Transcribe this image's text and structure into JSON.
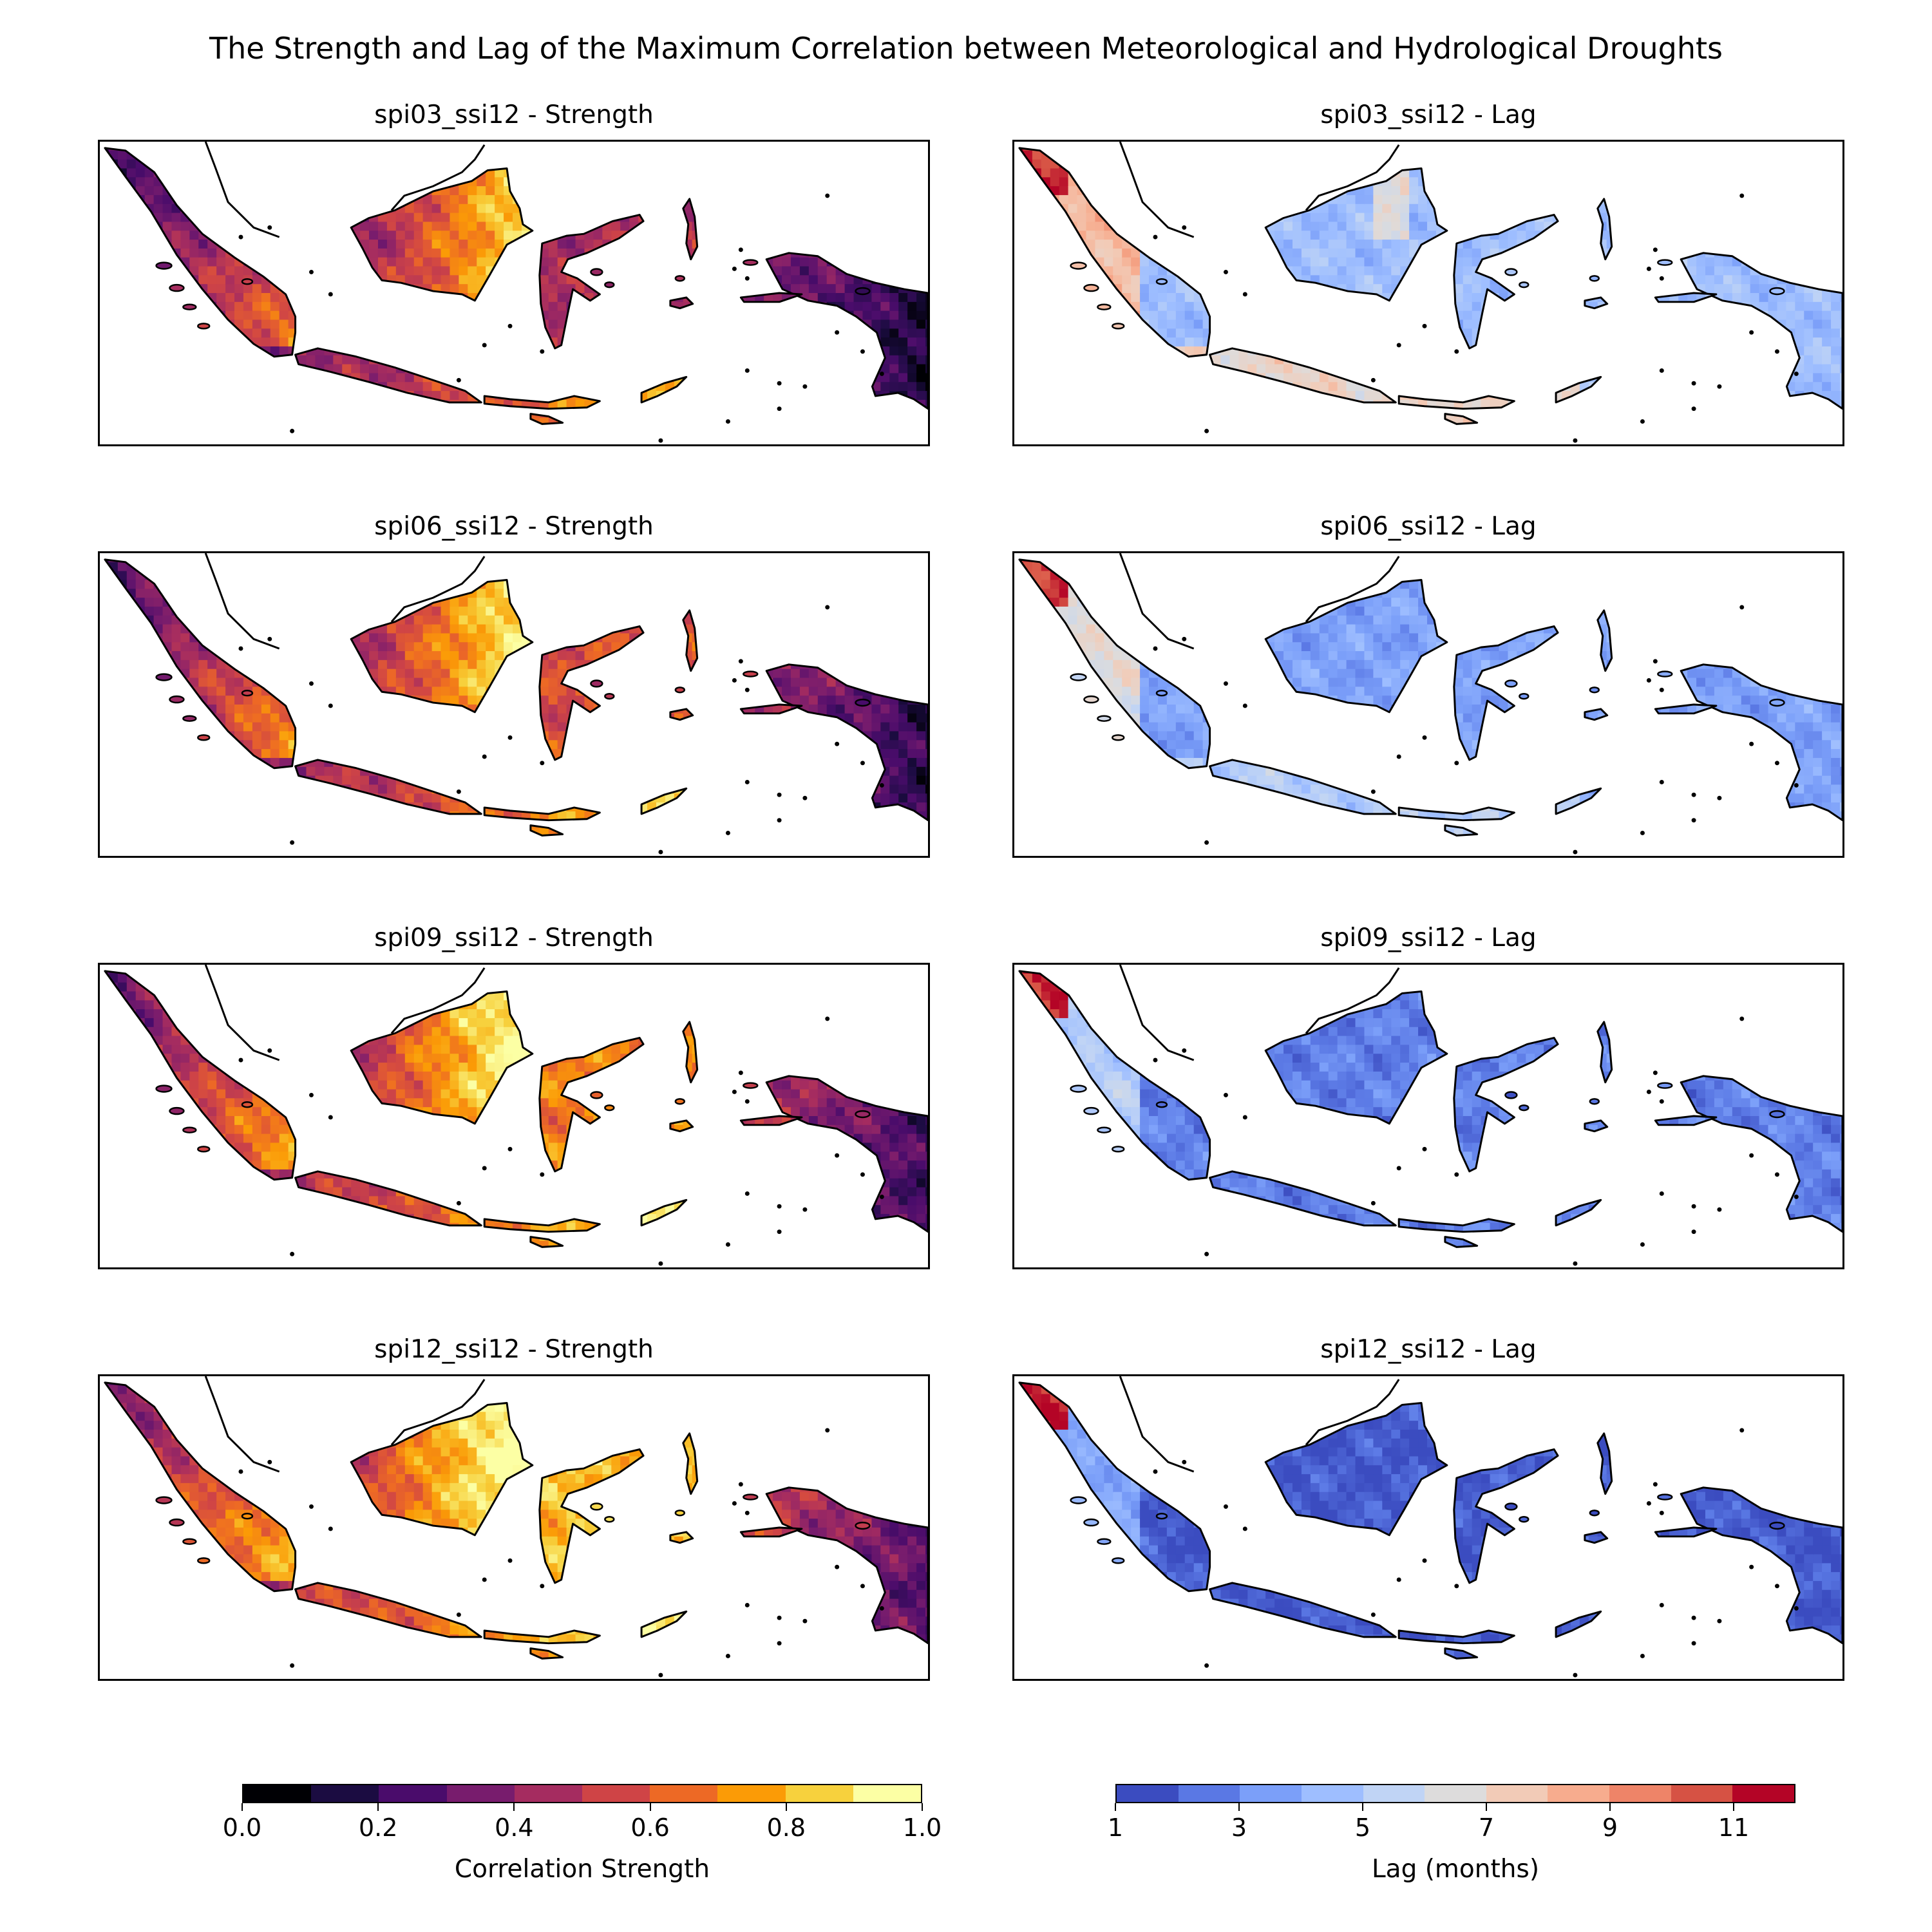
{
  "figure": {
    "title": "The Strength and Lag of the Maximum Correlation between Meteorological and Hydrological Droughts"
  },
  "panels": [
    {
      "title": "spi03_ssi12 - Strength",
      "kind": "strength",
      "variant": 0
    },
    {
      "title": "spi03_ssi12 - Lag",
      "kind": "lag",
      "variant": 0
    },
    {
      "title": "spi06_ssi12 - Strength",
      "kind": "strength",
      "variant": 1
    },
    {
      "title": "spi06_ssi12 - Lag",
      "kind": "lag",
      "variant": 1
    },
    {
      "title": "spi09_ssi12 - Strength",
      "kind": "strength",
      "variant": 2
    },
    {
      "title": "spi09_ssi12 - Lag",
      "kind": "lag",
      "variant": 2
    },
    {
      "title": "spi12_ssi12 - Strength",
      "kind": "strength",
      "variant": 3
    },
    {
      "title": "spi12_ssi12 - Lag",
      "kind": "lag",
      "variant": 3
    }
  ],
  "colorbars": {
    "strength": {
      "label": "Correlation Strength",
      "ticks": [
        "0.0",
        "0.2",
        "0.4",
        "0.6",
        "0.8",
        "1.0"
      ],
      "tick_values": [
        0.0,
        0.2,
        0.4,
        0.6,
        0.8,
        1.0
      ],
      "range": [
        0.0,
        1.0
      ],
      "colors": [
        "#000004",
        "#1b0c41",
        "#4a0c6b",
        "#781c6d",
        "#a52c60",
        "#cf4446",
        "#ed6925",
        "#fb9b06",
        "#f7d13d",
        "#fcffa4"
      ]
    },
    "lag": {
      "label": "Lag (months)",
      "ticks": [
        "1",
        "3",
        "5",
        "7",
        "9",
        "11"
      ],
      "tick_values": [
        1,
        3,
        5,
        7,
        9,
        11
      ],
      "range": [
        1,
        12
      ],
      "colors": [
        "#3b4cc0",
        "#5a78e4",
        "#7b9ff9",
        "#9ebeff",
        "#c0d4f5",
        "#dddcdc",
        "#f2cbb7",
        "#f7ac8e",
        "#ee8468",
        "#d65244",
        "#b40426"
      ]
    }
  }
}
